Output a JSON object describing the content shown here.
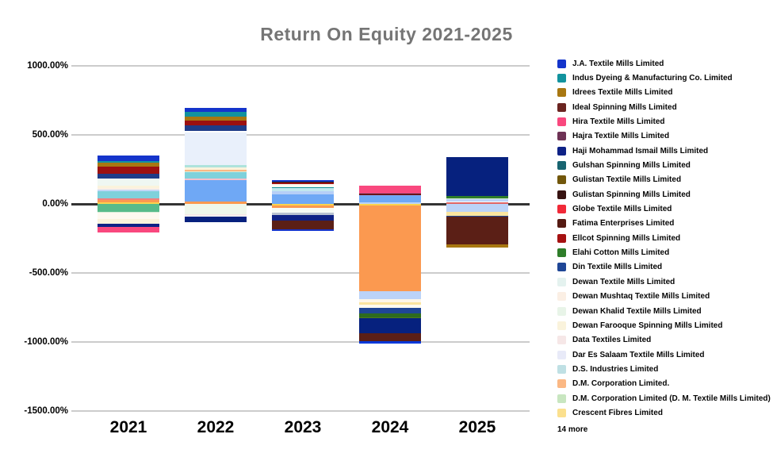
{
  "title": "Return On Equity 2021-2025",
  "colors": {
    "title_text": "#757575",
    "gridline": "#cccccc",
    "zero_line": "#333333",
    "axis_text": "#000000",
    "background": "#ffffff"
  },
  "chart_data": {
    "type": "bar",
    "subtype": "stacked-column",
    "title": "Return On Equity 2021-2025",
    "categories": [
      "2021",
      "2022",
      "2023",
      "2024",
      "2025"
    ],
    "y_axis": {
      "tick_labels": [
        "1000.00%",
        "500.00%",
        "0.00%",
        "-500.00%",
        "-1000.00%",
        "-1500.00%"
      ],
      "tick_values": [
        1000,
        500,
        0,
        -500,
        -1000,
        -1500
      ],
      "ylim": [
        -1500,
        1000
      ],
      "format": "percent",
      "grid": true
    },
    "bars": [
      {
        "category": "2021",
        "above": [
          {
            "color": "#1434CB",
            "value": 40
          },
          {
            "color": "#12939E",
            "value": 11
          },
          {
            "color": "#A87711",
            "value": 29
          },
          {
            "color": "#9C1010",
            "value": 52
          },
          {
            "color": "#1F3C88",
            "value": 34
          },
          {
            "color": "#EFF7F2",
            "value": 52
          },
          {
            "color": "#FAF3DC",
            "value": 17
          },
          {
            "color": "#FBEFE4",
            "value": 11
          },
          {
            "color": "#C3D7F7",
            "value": 11
          },
          {
            "color": "#7FD1DB",
            "value": 52
          },
          {
            "color": "#F08080",
            "value": 11
          },
          {
            "color": "#FB9950",
            "value": 17
          },
          {
            "color": "#FBD34D",
            "value": 11
          }
        ],
        "below": [
          {
            "color": "#57BB8A",
            "value": 57
          },
          {
            "color": "#D6EBD6",
            "value": 6
          },
          {
            "color": "#FDF9F0",
            "value": 46
          },
          {
            "color": "#FAF3DC",
            "value": 34
          },
          {
            "color": "#0E2286",
            "value": 23
          },
          {
            "color": "#F9487E",
            "value": 40
          }
        ]
      },
      {
        "category": "2022",
        "above": [
          {
            "color": "#1434CB",
            "value": 29
          },
          {
            "color": "#12939E",
            "value": 34
          },
          {
            "color": "#A87711",
            "value": 29
          },
          {
            "color": "#9C1010",
            "value": 34
          },
          {
            "color": "#1F3C88",
            "value": 40
          },
          {
            "color": "#FDFDFD",
            "value": 11
          },
          {
            "color": "#E9F0FB",
            "value": 240
          },
          {
            "color": "#AEE3DC",
            "value": 17
          },
          {
            "color": "#FAF3DC",
            "value": 17
          },
          {
            "color": "#FBB884",
            "value": 11
          },
          {
            "color": "#D6EBD6",
            "value": 6
          },
          {
            "color": "#7FD1DB",
            "value": 46
          },
          {
            "color": "#F5C0CB",
            "value": 11
          },
          {
            "color": "#6FA8F5",
            "value": 155
          },
          {
            "color": "#FB9950",
            "value": 17
          }
        ],
        "below": [
          {
            "color": "#EFF7EB",
            "value": 75
          },
          {
            "color": "#F6E7E7",
            "value": 11
          },
          {
            "color": "#FDFDFD",
            "value": 6
          },
          {
            "color": "#06217E",
            "value": 40
          }
        ]
      },
      {
        "category": "2023",
        "above": [
          {
            "color": "#1434CB",
            "value": 11
          },
          {
            "color": "#241F20",
            "value": 6
          },
          {
            "color": "#9C1010",
            "value": 11
          },
          {
            "color": "#FDF9F0",
            "value": 23
          },
          {
            "color": "#12939E",
            "value": 6
          },
          {
            "color": "#C2E7EE",
            "value": 23
          },
          {
            "color": "#B6CFF7",
            "value": 23
          },
          {
            "color": "#6FA8F5",
            "value": 69
          }
        ],
        "below": [
          {
            "color": "#FBD34D",
            "value": 11
          },
          {
            "color": "#FB9950",
            "value": 17
          },
          {
            "color": "#F6FBF5",
            "value": 34
          },
          {
            "color": "#B9C3D1",
            "value": 17
          },
          {
            "color": "#0E2286",
            "value": 40
          },
          {
            "color": "#5B1F16",
            "value": 63
          },
          {
            "color": "#1434CB",
            "value": 11
          }
        ]
      },
      {
        "category": "2024",
        "above": [
          {
            "color": "#F9487E",
            "value": 57
          },
          {
            "color": "#241F20",
            "value": 6
          },
          {
            "color": "#9C1010",
            "value": 6
          },
          {
            "color": "#6FA8F5",
            "value": 52
          },
          {
            "color": "#BBD3F8",
            "value": 11
          }
        ],
        "below": [
          {
            "color": "#FBD34D",
            "value": 11
          },
          {
            "color": "#FB9950",
            "value": 620
          },
          {
            "color": "#BBD3F8",
            "value": 57
          },
          {
            "color": "#FDF6E8",
            "value": 23
          },
          {
            "color": "#FAE59F",
            "value": 17
          },
          {
            "color": "#FFFBEF",
            "value": 23
          },
          {
            "color": "#1F4696",
            "value": 40
          },
          {
            "color": "#2E6B1E",
            "value": 29
          },
          {
            "color": "#4E7A1E",
            "value": 6
          },
          {
            "color": "#06217E",
            "value": 109
          },
          {
            "color": "#5B1F16",
            "value": 57
          },
          {
            "color": "#0338D8",
            "value": 17
          }
        ]
      },
      {
        "category": "2025",
        "above": [
          {
            "color": "#06217E",
            "value": 282
          },
          {
            "color": "#2E7D2A",
            "value": 17
          },
          {
            "color": "#D6EBD6",
            "value": 6
          },
          {
            "color": "#BBD3F8",
            "value": 17
          },
          {
            "color": "#FDFDFD",
            "value": 6
          },
          {
            "color": "#E06666",
            "value": 11
          }
        ],
        "below": [
          {
            "color": "#BBD3F8",
            "value": 57
          },
          {
            "color": "#FAE59F",
            "value": 29
          },
          {
            "color": "#1F4696",
            "value": 6
          },
          {
            "color": "#5B1F16",
            "value": 201
          },
          {
            "color": "#A87711",
            "value": 23
          }
        ]
      }
    ],
    "legend": {
      "position": "right",
      "items": [
        {
          "label": "J.A. Textile Mills Limited",
          "color": "#1434CB"
        },
        {
          "label": "Indus Dyeing & Manufacturing Co. Limited",
          "color": "#12939E"
        },
        {
          "label": "Idrees Textile Mills Limited",
          "color": "#A87711"
        },
        {
          "label": "Ideal Spinning Mills Limited",
          "color": "#6B2420"
        },
        {
          "label": "Hira Textile Mills Limited",
          "color": "#F9487E"
        },
        {
          "label": "Hajra Textile Mills Limited",
          "color": "#6E3255"
        },
        {
          "label": "Haji Mohammad Ismail Mills Limited",
          "color": "#0E2286"
        },
        {
          "label": "Gulshan Spinning Mills Limited",
          "color": "#186470"
        },
        {
          "label": "Gulistan Textile Mills Limited",
          "color": "#72570B"
        },
        {
          "label": "Gulistan Spinning Mills Limited",
          "color": "#371311"
        },
        {
          "label": "Globe Textile Mills Limited",
          "color": "#F12938"
        },
        {
          "label": "Fatima Enterprises Limited",
          "color": "#551A12"
        },
        {
          "label": "Ellcot Spinning Mills Limited",
          "color": "#A51111"
        },
        {
          "label": "Elahi Cotton Mills Limited",
          "color": "#2E7D2A"
        },
        {
          "label": "Din Textile Mills Limited",
          "color": "#1F4696"
        },
        {
          "label": "Dewan Textile Mills Limited",
          "color": "#E4F2EF"
        },
        {
          "label": "Dewan Mushtaq Textile Mills Limited",
          "color": "#FBEFE4"
        },
        {
          "label": "Dewan Khalid Textile Mills Limited",
          "color": "#E8F4E8"
        },
        {
          "label": "Dewan Farooque Spinning Mills Limited",
          "color": "#FAF3DC"
        },
        {
          "label": "Data Textiles Limited",
          "color": "#F6E7E7"
        },
        {
          "label": "Dar Es Salaam Textile Mills Limited",
          "color": "#E8EAF8"
        },
        {
          "label": "D.S. Industries Limited",
          "color": "#BFE0E4"
        },
        {
          "label": "D.M. Corporation Limited.",
          "color": "#FBB884"
        },
        {
          "label": "D.M. Corporation Limited  (D. M. Textile Mills Limited)",
          "color": "#C8E6C0"
        },
        {
          "label": "Crescent Fibres Limited",
          "color": "#FBE08E"
        }
      ],
      "more_label": "14 more"
    }
  }
}
